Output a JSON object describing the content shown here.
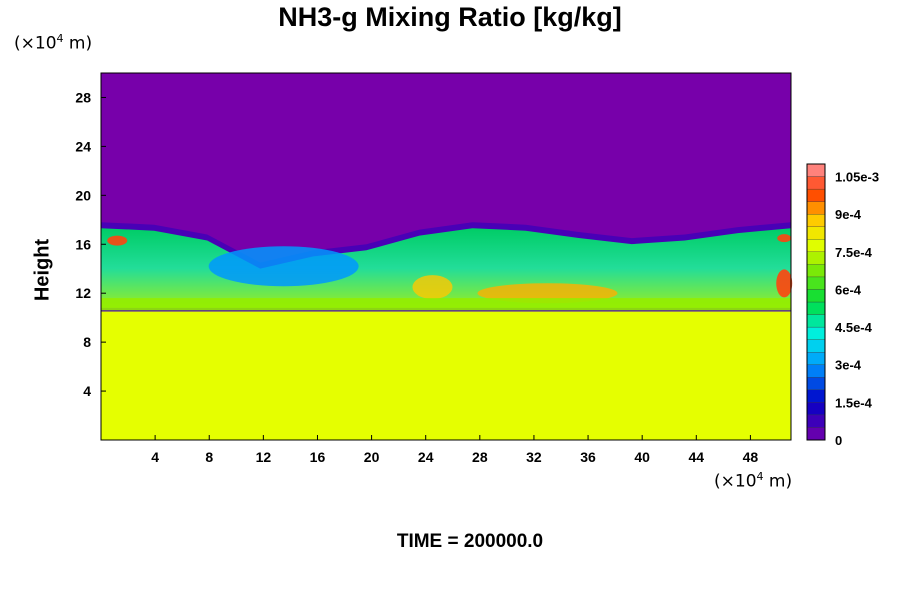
{
  "chart_data": {
    "type": "heatmap",
    "title": "NH3-g Mixing Ratio [kg/kg]",
    "ylabel": "Height",
    "xlabel": "",
    "x_unit": {
      "prefix": "(×10",
      "exp": "4",
      "suffix": " m)"
    },
    "y_unit": {
      "prefix": "(×10",
      "exp": "4",
      "suffix": " m)"
    },
    "x_ticks": [
      4,
      8,
      12,
      16,
      20,
      24,
      28,
      32,
      36,
      40,
      44,
      48
    ],
    "y_ticks": [
      4,
      8,
      12,
      16,
      20,
      24,
      28
    ],
    "xlim": [
      0,
      51
    ],
    "ylim": [
      0,
      30
    ],
    "colorbar": {
      "min": 0,
      "max": 0.0011,
      "tick_labels": [
        "0",
        "1.5e-4",
        "3e-4",
        "4.5e-4",
        "6e-4",
        "7.5e-4",
        "9e-4",
        "1.05e-3"
      ],
      "tick_values": [
        0,
        0.00015,
        0.0003,
        0.00045,
        0.0006,
        0.00075,
        0.0009,
        0.00105
      ]
    },
    "field_summary": {
      "lower_layer_value": 0.00078,
      "upper_layer_value": 0,
      "interface_height": [
        17.8,
        17.6,
        16.8,
        14.5,
        15.5,
        16.0,
        17.2,
        17.8,
        17.6,
        17.0,
        16.5,
        16.8,
        17.4,
        17.8
      ]
    },
    "annotation": "TIME = 200000.0"
  }
}
